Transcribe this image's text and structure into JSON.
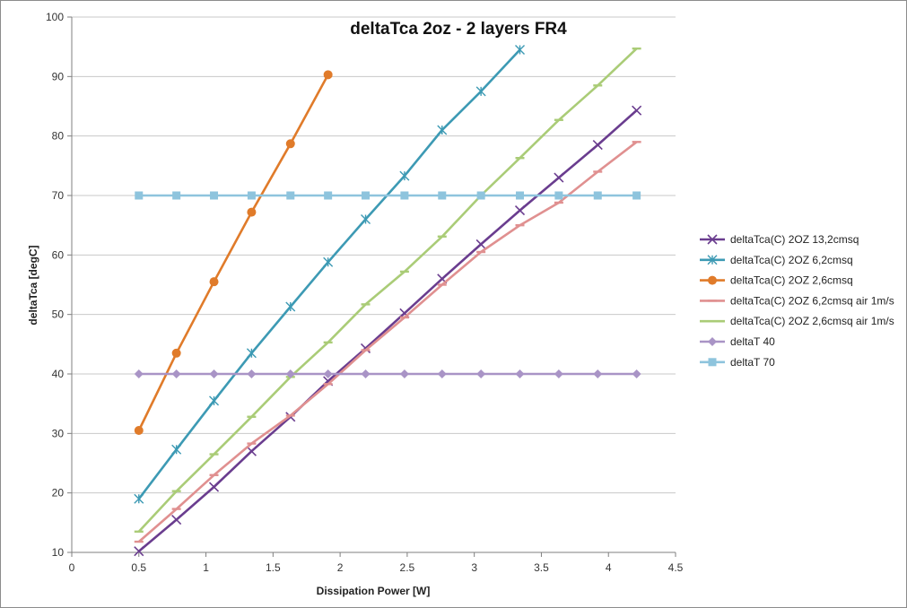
{
  "chart_data": {
    "type": "line",
    "title": "deltaTca 2oz - 2 layers FR4",
    "xlabel": "Dissipation Power [W]",
    "ylabel": "deltaTca [degC]",
    "xlim": [
      0,
      4.5
    ],
    "ylim": [
      10,
      100
    ],
    "x_ticks": [
      "0",
      "0.5",
      "1",
      "1.5",
      "2",
      "2.5",
      "3",
      "3.5",
      "4",
      "4.5"
    ],
    "y_ticks": [
      "10",
      "20",
      "30",
      "40",
      "50",
      "60",
      "70",
      "80",
      "90",
      "100"
    ],
    "grid": "horizontal",
    "legend_position": "right",
    "series": [
      {
        "name": "deltaTca(C) 2OZ 13,2cmsq",
        "color": "#6a3d8f",
        "marker": "x",
        "x": [
          0.5,
          0.78,
          1.06,
          1.34,
          1.63,
          1.91,
          2.19,
          2.48,
          2.76,
          3.05,
          3.34,
          3.63,
          3.92,
          4.21
        ],
        "y": [
          10.2,
          15.5,
          21.0,
          27.0,
          32.8,
          38.8,
          44.3,
          50.2,
          56.0,
          61.8,
          67.5,
          73.0,
          78.5,
          84.3
        ]
      },
      {
        "name": "deltaTca(C) 2OZ 6,2cmsq",
        "color": "#3d9ab4",
        "marker": "asterisk",
        "x": [
          0.5,
          0.78,
          1.06,
          1.34,
          1.63,
          1.91,
          2.19,
          2.48,
          2.76,
          3.05,
          3.34
        ],
        "y": [
          19.0,
          27.3,
          35.5,
          43.5,
          51.3,
          58.8,
          66.0,
          73.3,
          81.0,
          87.5,
          94.5
        ]
      },
      {
        "name": "deltaTca(C) 2OZ 2,6cmsq",
        "color": "#e07b2a",
        "marker": "circle",
        "x": [
          0.5,
          0.78,
          1.06,
          1.34,
          1.63,
          1.91
        ],
        "y": [
          30.5,
          43.5,
          55.5,
          67.2,
          78.7,
          90.3
        ]
      },
      {
        "name": "deltaTca(C) 2OZ 6,2cmsq air 1m/s",
        "color": "#e09090",
        "marker": "dash",
        "x": [
          0.5,
          0.78,
          1.06,
          1.34,
          1.63,
          1.91,
          2.19,
          2.48,
          2.76,
          3.05,
          3.34,
          3.63,
          3.92,
          4.21
        ],
        "y": [
          11.8,
          17.3,
          23.0,
          28.3,
          33.0,
          38.3,
          44.0,
          49.5,
          55.0,
          60.5,
          65.0,
          68.8,
          74.0,
          79.0
        ]
      },
      {
        "name": "deltaTca(C) 2OZ 2,6cmsq air 1m/s",
        "color": "#aacc77",
        "marker": "dash",
        "x": [
          0.5,
          0.78,
          1.06,
          1.34,
          1.63,
          1.91,
          2.19,
          2.48,
          2.76,
          3.05,
          3.34,
          3.63,
          3.92,
          4.21
        ],
        "y": [
          13.5,
          20.3,
          26.5,
          32.8,
          39.5,
          45.3,
          51.7,
          57.2,
          63.1,
          70.0,
          76.3,
          82.7,
          88.5,
          94.7
        ]
      },
      {
        "name": "deltaT 40",
        "color": "#a994c6",
        "marker": "diamond",
        "x": [
          0.5,
          0.78,
          1.06,
          1.34,
          1.63,
          1.91,
          2.19,
          2.48,
          2.76,
          3.05,
          3.34,
          3.63,
          3.92,
          4.21
        ],
        "y": [
          40,
          40,
          40,
          40,
          40,
          40,
          40,
          40,
          40,
          40,
          40,
          40,
          40,
          40
        ]
      },
      {
        "name": "deltaT 70",
        "color": "#8ec4dd",
        "marker": "square",
        "x": [
          0.5,
          0.78,
          1.06,
          1.34,
          1.63,
          1.91,
          2.19,
          2.48,
          2.76,
          3.05,
          3.34,
          3.63,
          3.92,
          4.21
        ],
        "y": [
          70,
          70,
          70,
          70,
          70,
          70,
          70,
          70,
          70,
          70,
          70,
          70,
          70,
          70
        ]
      }
    ]
  }
}
